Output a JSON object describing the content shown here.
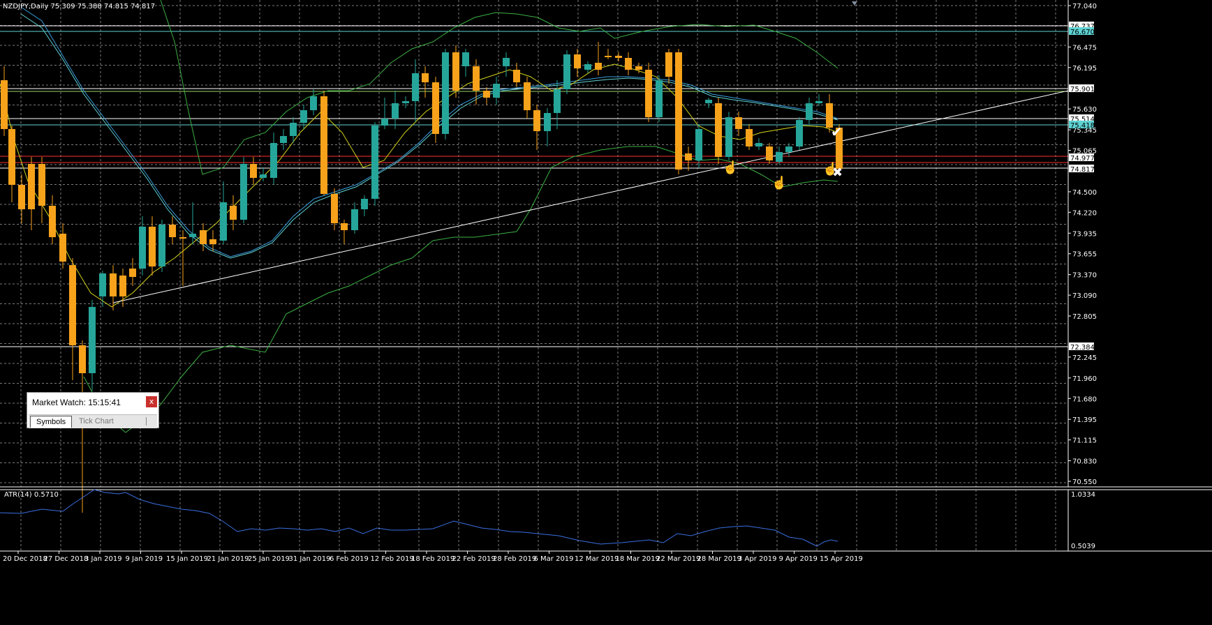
{
  "chart": {
    "header": "NZDJPY,Daily  75.309 75.388 74.815 74.817",
    "price_axis_labels": [
      "77.040",
      "76.475",
      "76.195",
      "75.630",
      "75.345",
      "75.065",
      "74.500",
      "74.220",
      "73.935",
      "73.655",
      "73.370",
      "73.090",
      "72.805",
      "72.245",
      "71.960",
      "71.680",
      "71.395",
      "71.115",
      "70.830",
      "70.550"
    ],
    "price_tags": [
      {
        "value": "76.737",
        "color": "#000000",
        "bg": "#ffffff"
      },
      {
        "value": "76.670",
        "color": "#000000",
        "bg": "#5fd3d3"
      },
      {
        "value": "75.901",
        "color": "#000000",
        "bg": "#ffffff"
      },
      {
        "value": "75.514",
        "color": "#000000",
        "bg": "#ffffff"
      },
      {
        "value": "75.418",
        "color": "#000000",
        "bg": "#5fd3d3"
      },
      {
        "value": "74.977",
        "color": "#000000",
        "bg": "#ffffff"
      },
      {
        "value": "74.817",
        "color": "#000000",
        "bg": "#ffffff"
      },
      {
        "value": "72.384",
        "color": "#000000",
        "bg": "#ffffff"
      }
    ],
    "date_labels": [
      "20 Dec 2018",
      "27 Dec 2018",
      "3 Jan 2019",
      "9 Jan 2019",
      "15 Jan 2019",
      "21 Jan 2019",
      "25 Jan 2019",
      "31 Jan 2019",
      "6 Feb 2019",
      "12 Feb 2019",
      "18 Feb 2019",
      "22 Feb 2019",
      "28 Feb 2019",
      "6 Mar 2019",
      "12 Mar 2019",
      "18 Mar 2019",
      "22 Mar 2019",
      "28 Mar 2019",
      "3 Apr 2019",
      "9 Apr 2019",
      "15 Apr 2019"
    ],
    "colors": {
      "bull": "#26a69a",
      "bear": "#f7a21b",
      "grid": "#cfcfcf",
      "atr": "#3a6fe0"
    }
  },
  "atr": {
    "label": "ATR(14) 0.5710",
    "axis_labels": [
      "1.0334",
      "0.5039"
    ]
  },
  "market_watch": {
    "title": "Market Watch: 15:15:41",
    "close_label": "x",
    "tab_symbols": "Symbols",
    "tab_tick": "Tick Chart"
  }
}
